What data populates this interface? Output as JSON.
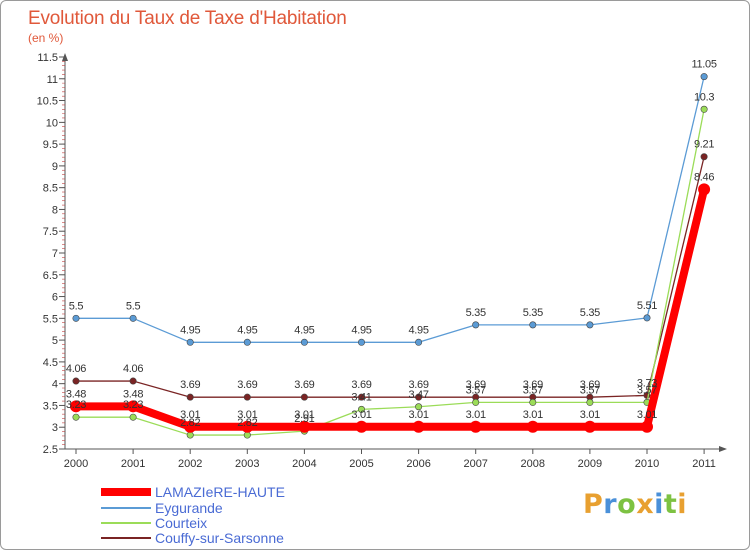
{
  "title": "Evolution du Taux de Taxe d'Habitation",
  "subtitle": "(en %)",
  "logo": {
    "text": "Proxiti",
    "letter_colors": [
      "#e8a030",
      "#4a90d9",
      "#7dc242",
      "#e8a030",
      "#4a90d9",
      "#7dc242",
      "#e8a030"
    ]
  },
  "chart_data": {
    "type": "line",
    "x": [
      "2000",
      "2001",
      "2002",
      "2003",
      "2004",
      "2005",
      "2006",
      "2007",
      "2008",
      "2009",
      "2010",
      "2011"
    ],
    "ylim": [
      2.5,
      11.5
    ],
    "yticks": [
      "2.5",
      "3",
      "3.5",
      "4",
      "4.5",
      "5",
      "5.5",
      "6",
      "6.5",
      "7",
      "7.5",
      "8",
      "8.5",
      "9",
      "9.5",
      "10",
      "10.5",
      "11",
      "11.5"
    ],
    "grid": false,
    "legend_position": "bottom-left",
    "series": [
      {
        "name": "LAMAZIeRE-HAUTE",
        "color": "#ff0000",
        "values": [
          3.48,
          3.48,
          3.01,
          3.01,
          3.01,
          3.01,
          3.01,
          3.01,
          3.01,
          3.01,
          3.01,
          8.46
        ],
        "labels": [
          "3.48",
          "3.48",
          "3.01",
          "3.01",
          "3.01",
          "3.01",
          "3.01",
          "3.01",
          "3.01",
          "3.01",
          "3.01",
          "8.46"
        ]
      },
      {
        "name": "Eygurande",
        "color": "#5b9bd5",
        "values": [
          5.5,
          5.5,
          4.95,
          4.95,
          4.95,
          4.95,
          4.95,
          5.35,
          5.35,
          5.35,
          5.51,
          11.05
        ],
        "labels": [
          "5.5",
          "5.5",
          "4.95",
          "4.95",
          "4.95",
          "4.95",
          "4.95",
          "5.35",
          "5.35",
          "5.35",
          "5.51",
          "11.05"
        ]
      },
      {
        "name": "Courteix",
        "color": "#9bdc58",
        "values": [
          3.23,
          3.23,
          2.82,
          2.82,
          2.91,
          3.41,
          3.47,
          3.57,
          3.57,
          3.57,
          3.57,
          10.3
        ],
        "labels": [
          "3.23",
          "3.23",
          "2.82",
          "2.82",
          "2.91",
          "3.41",
          "3.47",
          "3.57",
          "3.57",
          "3.57",
          "3.57",
          "10.3"
        ]
      },
      {
        "name": "Couffy-sur-Sarsonne",
        "color": "#7a2424",
        "values": [
          4.06,
          4.06,
          3.69,
          3.69,
          3.69,
          3.69,
          3.69,
          3.69,
          3.69,
          3.69,
          3.73,
          9.21
        ],
        "labels": [
          "4.06",
          "4.06",
          "3.69",
          "3.69",
          "3.69",
          "3.69",
          "3.69",
          "3.69",
          "3.69",
          "3.69",
          "3.73",
          "9.21"
        ]
      }
    ]
  }
}
